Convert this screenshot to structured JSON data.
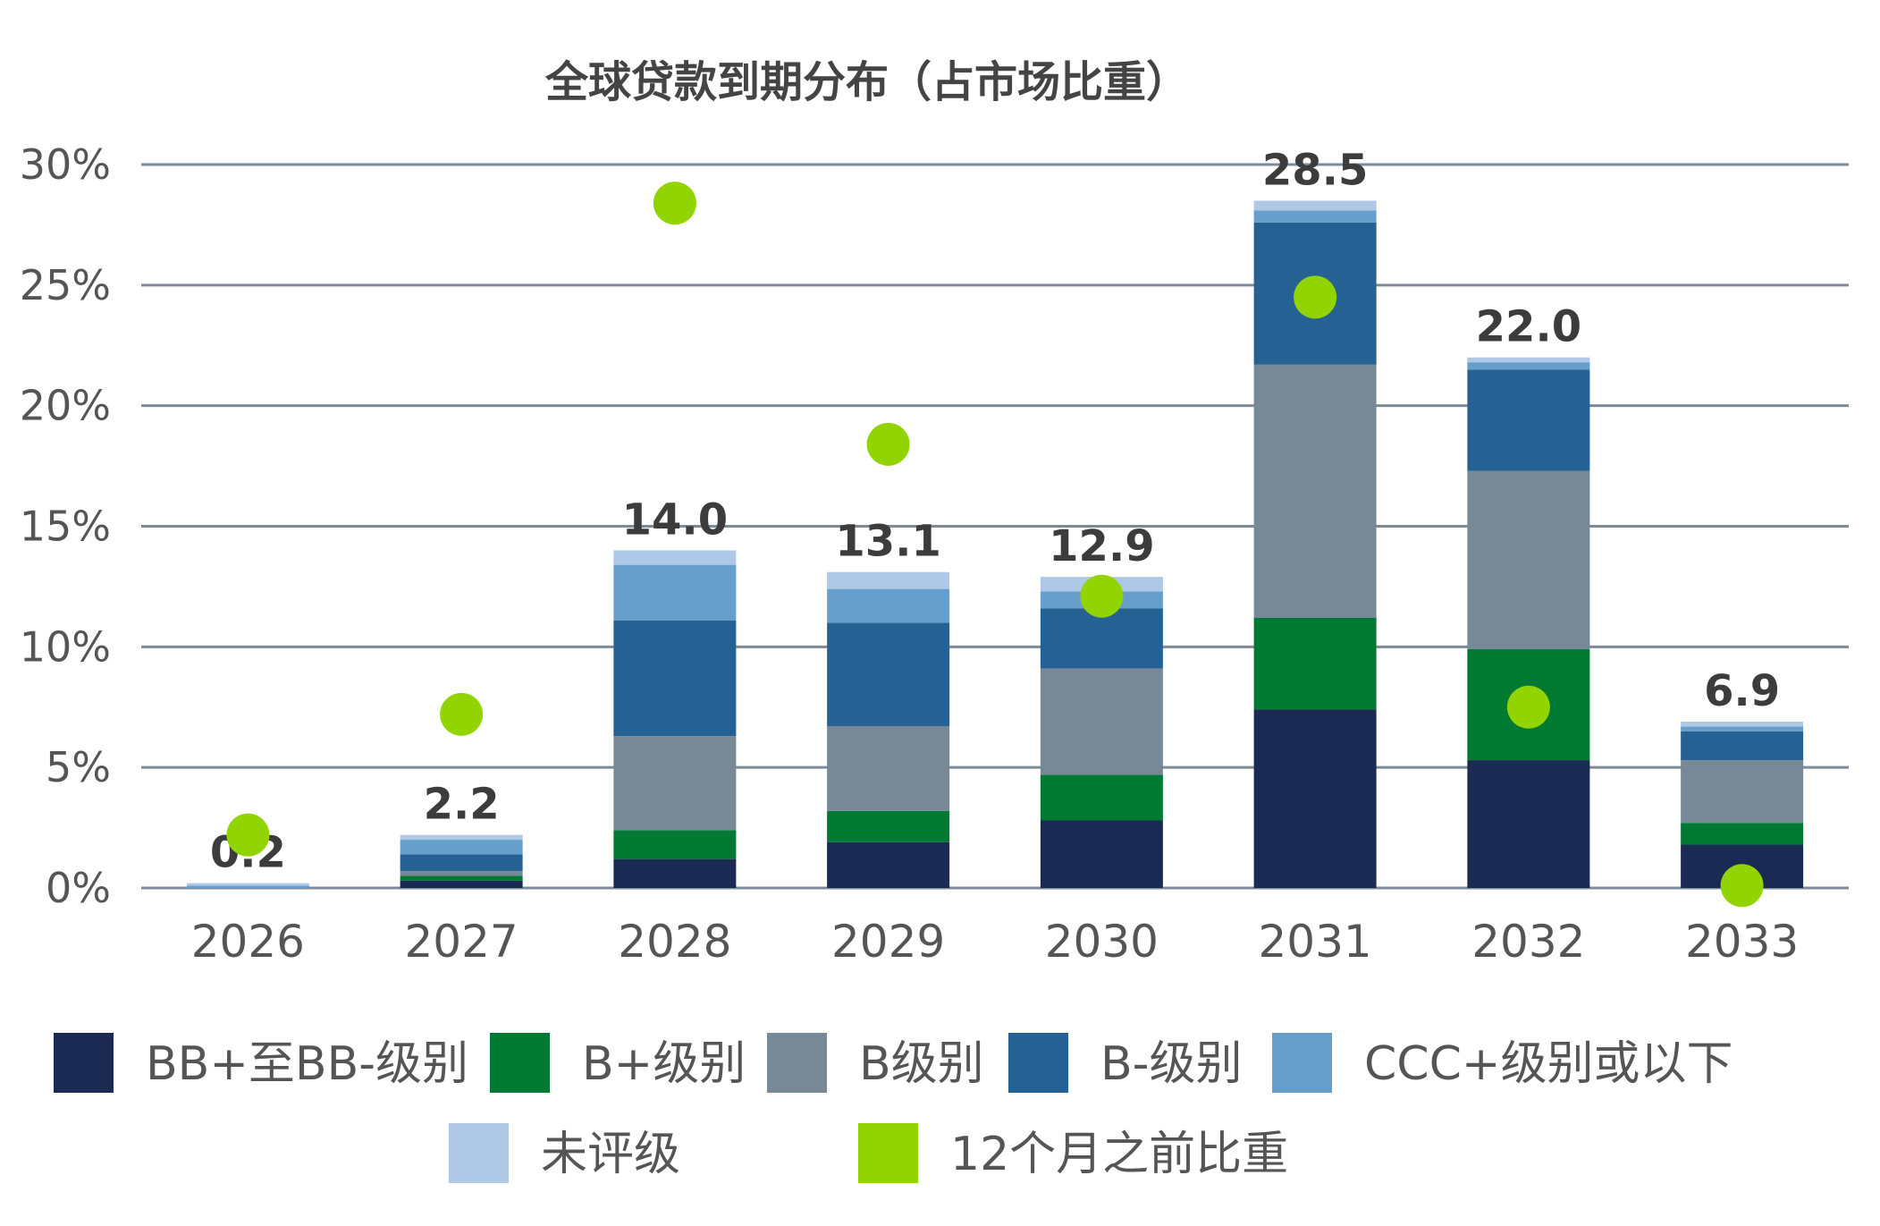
{
  "chart_data": {
    "type": "bar",
    "stacked": true,
    "title": "全球贷款到期分布（占市场比重）",
    "xlabel": "",
    "ylabel": "",
    "ylim": [
      0,
      30
    ],
    "y_ticks": [
      "0%",
      "5%",
      "10%",
      "15%",
      "20%",
      "25%",
      "30%"
    ],
    "grid": true,
    "legend_position": "bottom",
    "categories": [
      "2026",
      "2027",
      "2028",
      "2029",
      "2030",
      "2031",
      "2032",
      "2033"
    ],
    "series": [
      {
        "name": "BB+至BB-级别",
        "color": "#1b2a52",
        "values": [
          0.0,
          0.3,
          1.2,
          1.9,
          2.8,
          7.4,
          5.3,
          1.8
        ]
      },
      {
        "name": "B+级别",
        "color": "#007a33",
        "values": [
          0.0,
          0.2,
          1.2,
          1.3,
          1.9,
          3.8,
          4.6,
          0.9
        ]
      },
      {
        "name": "B级别",
        "color": "#778896",
        "values": [
          0.0,
          0.2,
          3.9,
          3.5,
          4.4,
          10.5,
          7.4,
          2.6
        ]
      },
      {
        "name": "B-级别",
        "color": "#266194",
        "values": [
          0.0,
          0.7,
          4.8,
          4.3,
          2.5,
          5.9,
          4.2,
          1.2
        ]
      },
      {
        "name": "CCC+级别或以下",
        "color": "#669fcb",
        "values": [
          0.1,
          0.6,
          2.3,
          1.4,
          0.7,
          0.5,
          0.3,
          0.2
        ]
      },
      {
        "name": "未评级",
        "color": "#afc8e5",
        "values": [
          0.1,
          0.2,
          0.6,
          0.7,
          0.6,
          0.4,
          0.2,
          0.2
        ]
      }
    ],
    "totals": [
      "0.2",
      "2.2",
      "14.0",
      "13.1",
      "12.9",
      "28.5",
      "22.0",
      "6.9"
    ],
    "scatter": {
      "name": "12个月之前比重",
      "color": "#92d400",
      "values": [
        2.2,
        7.2,
        28.4,
        18.4,
        12.1,
        24.5,
        7.5,
        0.1
      ]
    }
  }
}
